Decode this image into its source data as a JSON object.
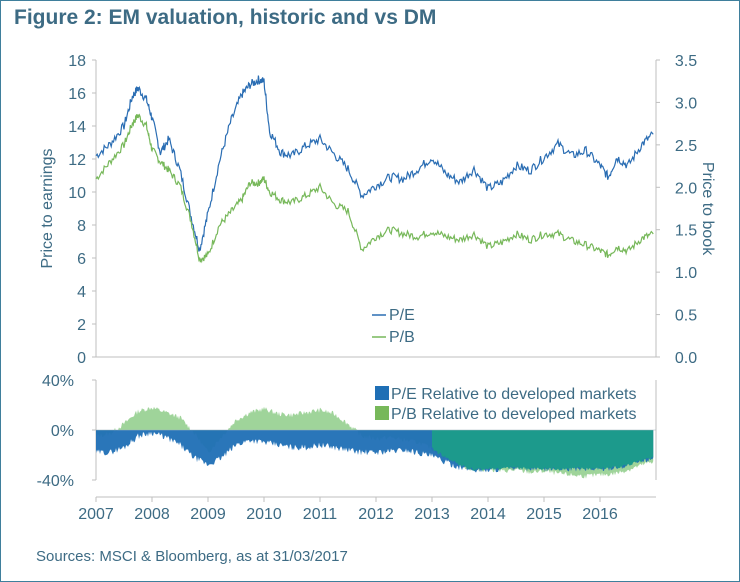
{
  "title": "Figure 2: EM valuation, historic and vs DM",
  "source": "Sources: MSCI & Bloomberg, as at 31/03/2017",
  "colors": {
    "text": "#3d6b84",
    "pe_line": "#2a6db3",
    "pb_line": "#77b85a",
    "pe_rel": "#1f6fb5",
    "pb_rel": "#9fd49a",
    "overlap": "#1c9a8c",
    "axis": "#bfbfbf"
  },
  "chart_data": [
    {
      "type": "line",
      "title": "",
      "ylabel": "Price to earnings",
      "y2label": "Price to book",
      "xlim": [
        2007,
        2017
      ],
      "ylim": [
        0,
        18
      ],
      "y2lim": [
        0,
        3.5
      ],
      "yticks": [
        "0",
        "2",
        "4",
        "6",
        "8",
        "10",
        "12",
        "14",
        "16",
        "18"
      ],
      "y2ticks": [
        "0.0",
        "0.5",
        "1.0",
        "1.5",
        "2.0",
        "2.5",
        "3.0",
        "3.5"
      ],
      "legend_position": "center-bottom",
      "series": [
        {
          "name": "P/E",
          "axis": "left",
          "x": [
            2007.0,
            2007.25,
            2007.5,
            2007.65,
            2007.75,
            2007.9,
            2008.0,
            2008.15,
            2008.3,
            2008.5,
            2008.7,
            2008.85,
            2009.0,
            2009.2,
            2009.4,
            2009.6,
            2009.75,
            2009.9,
            2010.0,
            2010.1,
            2010.3,
            2010.5,
            2010.75,
            2011.0,
            2011.25,
            2011.5,
            2011.75,
            2012.0,
            2012.25,
            2012.5,
            2012.75,
            2013.0,
            2013.25,
            2013.5,
            2013.75,
            2014.0,
            2014.25,
            2014.5,
            2014.75,
            2015.0,
            2015.25,
            2015.5,
            2015.75,
            2016.0,
            2016.15,
            2016.3,
            2016.5,
            2016.75,
            2016.95
          ],
          "values": [
            12.2,
            12.9,
            14.0,
            15.8,
            16.3,
            15.6,
            14.5,
            12.4,
            13.2,
            11.3,
            8.5,
            6.5,
            8.7,
            11.8,
            14.2,
            15.9,
            16.5,
            16.8,
            16.7,
            13.7,
            12.4,
            12.2,
            12.8,
            13.2,
            12.3,
            11.4,
            9.8,
            10.4,
            10.9,
            10.8,
            11.4,
            12.1,
            11.1,
            10.6,
            11.4,
            10.2,
            10.6,
            11.6,
            11.3,
            12.1,
            12.9,
            12.2,
            12.5,
            11.6,
            10.9,
            12.1,
            11.6,
            12.9,
            13.5
          ]
        },
        {
          "name": "P/B",
          "axis": "right",
          "x": [
            2007.0,
            2007.25,
            2007.5,
            2007.65,
            2007.75,
            2007.9,
            2008.0,
            2008.15,
            2008.3,
            2008.5,
            2008.7,
            2008.85,
            2009.0,
            2009.2,
            2009.4,
            2009.6,
            2009.75,
            2009.9,
            2010.0,
            2010.1,
            2010.3,
            2010.5,
            2010.75,
            2011.0,
            2011.25,
            2011.5,
            2011.75,
            2012.0,
            2012.25,
            2012.5,
            2012.75,
            2013.0,
            2013.25,
            2013.5,
            2013.75,
            2014.0,
            2014.25,
            2014.5,
            2014.75,
            2015.0,
            2015.25,
            2015.5,
            2015.75,
            2016.0,
            2016.15,
            2016.3,
            2016.5,
            2016.75,
            2016.95
          ],
          "values": [
            2.1,
            2.3,
            2.5,
            2.75,
            2.85,
            2.72,
            2.45,
            2.3,
            2.2,
            2.02,
            1.6,
            1.15,
            1.2,
            1.55,
            1.7,
            1.85,
            2.05,
            2.05,
            2.1,
            1.95,
            1.85,
            1.82,
            1.9,
            2.0,
            1.8,
            1.72,
            1.27,
            1.42,
            1.5,
            1.45,
            1.42,
            1.48,
            1.42,
            1.38,
            1.45,
            1.3,
            1.35,
            1.45,
            1.38,
            1.45,
            1.45,
            1.37,
            1.32,
            1.25,
            1.2,
            1.3,
            1.25,
            1.4,
            1.45
          ]
        }
      ]
    },
    {
      "type": "area",
      "title": "",
      "categories": [
        "2007",
        "2008",
        "2009",
        "2010",
        "2011",
        "2012",
        "2013",
        "2014",
        "2015",
        "2016"
      ],
      "ylim": [
        -40,
        40
      ],
      "yticks": [
        "-40%",
        "0%",
        "40%"
      ],
      "legend_position": "top-right",
      "series": [
        {
          "name": "P/E Relative to developed markets",
          "x": [
            2007.0,
            2007.25,
            2007.5,
            2007.75,
            2008.0,
            2008.25,
            2008.5,
            2008.75,
            2009.0,
            2009.25,
            2009.5,
            2009.75,
            2010.0,
            2010.25,
            2010.5,
            2010.75,
            2011.0,
            2011.25,
            2011.5,
            2011.75,
            2012.0,
            2012.25,
            2012.5,
            2012.75,
            2013.0,
            2013.25,
            2013.5,
            2013.75,
            2014.0,
            2014.25,
            2014.5,
            2014.75,
            2015.0,
            2015.25,
            2015.5,
            2015.75,
            2016.0,
            2016.25,
            2016.5,
            2016.75,
            2016.95
          ],
          "values": [
            -18,
            -18,
            -14,
            -5,
            -2,
            -6,
            -12,
            -22,
            -28,
            -22,
            -12,
            -8,
            -10,
            -12,
            -14,
            -14,
            -12,
            -14,
            -16,
            -18,
            -18,
            -17,
            -16,
            -18,
            -21,
            -26,
            -30,
            -32,
            -32,
            -31,
            -30,
            -31,
            -31,
            -31,
            -31,
            -31,
            -31,
            -30,
            -28,
            -25,
            -22
          ]
        },
        {
          "name": "P/B Relative to developed markets",
          "x": [
            2007.0,
            2007.25,
            2007.5,
            2007.75,
            2008.0,
            2008.25,
            2008.5,
            2008.75,
            2009.0,
            2009.25,
            2009.5,
            2009.75,
            2010.0,
            2010.25,
            2010.5,
            2010.75,
            2011.0,
            2011.25,
            2011.5,
            2011.75,
            2012.0,
            2012.25,
            2012.5,
            2012.75,
            2013.0,
            2013.25,
            2013.5,
            2013.75,
            2014.0,
            2014.25,
            2014.5,
            2014.75,
            2015.0,
            2015.25,
            2015.5,
            2015.75,
            2016.0,
            2016.25,
            2016.5,
            2016.75,
            2016.95
          ],
          "values": [
            -5,
            -3,
            5,
            15,
            18,
            14,
            10,
            -2,
            -18,
            -5,
            8,
            14,
            17,
            13,
            12,
            14,
            16,
            13,
            5,
            -5,
            -7,
            -6,
            -8,
            -10,
            -15,
            -22,
            -28,
            -32,
            -31,
            -33,
            -32,
            -34,
            -33,
            -35,
            -36,
            -37,
            -36,
            -35,
            -32,
            -28,
            -25
          ]
        }
      ]
    }
  ],
  "legend_top": {
    "pe": "P/E",
    "pb": "P/B"
  },
  "legend_bottom": {
    "pe": "P/E Relative to developed markets",
    "pb": "P/B Relative to developed markets"
  },
  "xtick_labels": [
    "2007",
    "2008",
    "2009",
    "2010",
    "2011",
    "2012",
    "2013",
    "2014",
    "2015",
    "2016"
  ]
}
